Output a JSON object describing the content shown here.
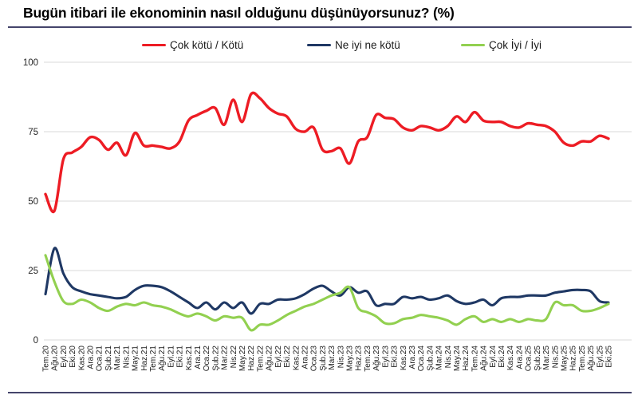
{
  "header": {
    "title": "Bugün itibari ile ekonominin nasıl olduğunu düşünüyorsunuz? (%)"
  },
  "colors": {
    "grid": "#D9D9D9",
    "separator": "#45456B",
    "axis_text": "#1a1a1a",
    "tick_text": "#262626"
  },
  "chart_data": {
    "type": "line",
    "title": "Bugün itibari ile ekonominin nasıl olduğunu düşünüyorsunuz? (%)",
    "smooth": true,
    "grid": "horizontal",
    "legend_position": "top",
    "ylim": [
      0,
      100
    ],
    "yticks": [
      0,
      25,
      50,
      75,
      100
    ],
    "xlabel": "",
    "ylabel": "",
    "categories": [
      "Tem.20",
      "Ağu.20",
      "Eyl.20",
      "Eki.20",
      "Kas.20",
      "Ara.20",
      "Oca.21",
      "Şub.21",
      "Mar.21",
      "Nis.21",
      "May.21",
      "Haz.21",
      "Tem.21",
      "Ağu.21",
      "Eyl.21",
      "Eki.21",
      "Kas.21",
      "Ara.21",
      "Oca.22",
      "Şub.22",
      "Mar.22",
      "Nis.22",
      "May.22",
      "Haz.22",
      "Tem.22",
      "Ağu.22",
      "Eyl.22",
      "Eki.22",
      "Kas.22",
      "Ara.22",
      "Oca.23",
      "Şub.23",
      "Mar.23",
      "Nis.23",
      "May.23",
      "Haz.23",
      "Tem.23",
      "Ağu.23",
      "Eyl.23",
      "Eki.23",
      "Kas.23",
      "Ara.23",
      "Oca.24",
      "Şub.24",
      "Mar.24",
      "Nis.24",
      "May.24",
      "Haz.24",
      "Tem.24",
      "Ağu.24",
      "Eyl.24",
      "Eki.24",
      "Kas.24",
      "Ara.24",
      "Oca.25",
      "Şub.25",
      "Mar.25",
      "Nis.25",
      "May.25",
      "Haz.25",
      "Tem.25",
      "Ağu.25",
      "Eyl.25",
      "Eki.25"
    ],
    "series": [
      {
        "name": "Çok kötü / Kötü",
        "color": "#ED1C24",
        "stroke_width": 3.4,
        "values": [
          52.5,
          46.5,
          65,
          67.5,
          69.5,
          73,
          72,
          68.5,
          71,
          66.5,
          74.5,
          70,
          70,
          69.5,
          69,
          71.5,
          79,
          81,
          82.5,
          83.5,
          77.5,
          86.5,
          78.5,
          88.5,
          87,
          83.5,
          81.5,
          80.5,
          76,
          75,
          76.5,
          68.5,
          68,
          69,
          63.5,
          71.5,
          73,
          81,
          80,
          79.5,
          76.5,
          75.5,
          77,
          76.5,
          75.5,
          77,
          80.5,
          78.5,
          82,
          79,
          78.5,
          78.5,
          77,
          76.5,
          78,
          77.5,
          77,
          75,
          71,
          70,
          71.5,
          71.5,
          73.5,
          72.5
        ]
      },
      {
        "name": "Ne iyi ne kötü",
        "color": "#1F3864",
        "stroke_width": 3.1,
        "values": [
          16.5,
          33,
          24,
          19,
          17.5,
          16.5,
          16,
          15.5,
          15,
          15.5,
          18,
          19.5,
          19.5,
          19,
          17.5,
          15.5,
          13.5,
          11.5,
          13.5,
          11,
          13.5,
          11.5,
          13.5,
          9.5,
          13,
          13,
          14.5,
          14.5,
          15,
          16.5,
          18.5,
          19.5,
          17.5,
          16,
          19,
          17,
          17.5,
          12.5,
          13,
          13,
          15.5,
          15,
          15.5,
          14.5,
          15,
          16,
          14,
          13,
          13.5,
          14.5,
          12.5,
          15,
          15.5,
          15.5,
          16,
          16,
          16,
          17,
          17.5,
          18,
          18,
          17.5,
          14,
          13.5
        ]
      },
      {
        "name": "Çok İyi / İyi",
        "color": "#92D050",
        "stroke_width": 3.1,
        "values": [
          30.5,
          21,
          14,
          13,
          14.5,
          13.5,
          11.5,
          10.5,
          12,
          13,
          12.5,
          13.5,
          12.5,
          12,
          11,
          9.5,
          8.5,
          9.5,
          8.5,
          7,
          8.5,
          8,
          8,
          3.5,
          5.5,
          5.5,
          7,
          9,
          10.5,
          12,
          13,
          14.5,
          16,
          17,
          19,
          11.5,
          10,
          8.5,
          6,
          6,
          7.5,
          8,
          9,
          8.5,
          8,
          7,
          5.5,
          7.5,
          8.5,
          6.5,
          7.5,
          6.5,
          7.5,
          6.5,
          7.5,
          7,
          7.5,
          13.5,
          12.5,
          12.5,
          10.5,
          10.5,
          11.5,
          13
        ]
      }
    ]
  }
}
